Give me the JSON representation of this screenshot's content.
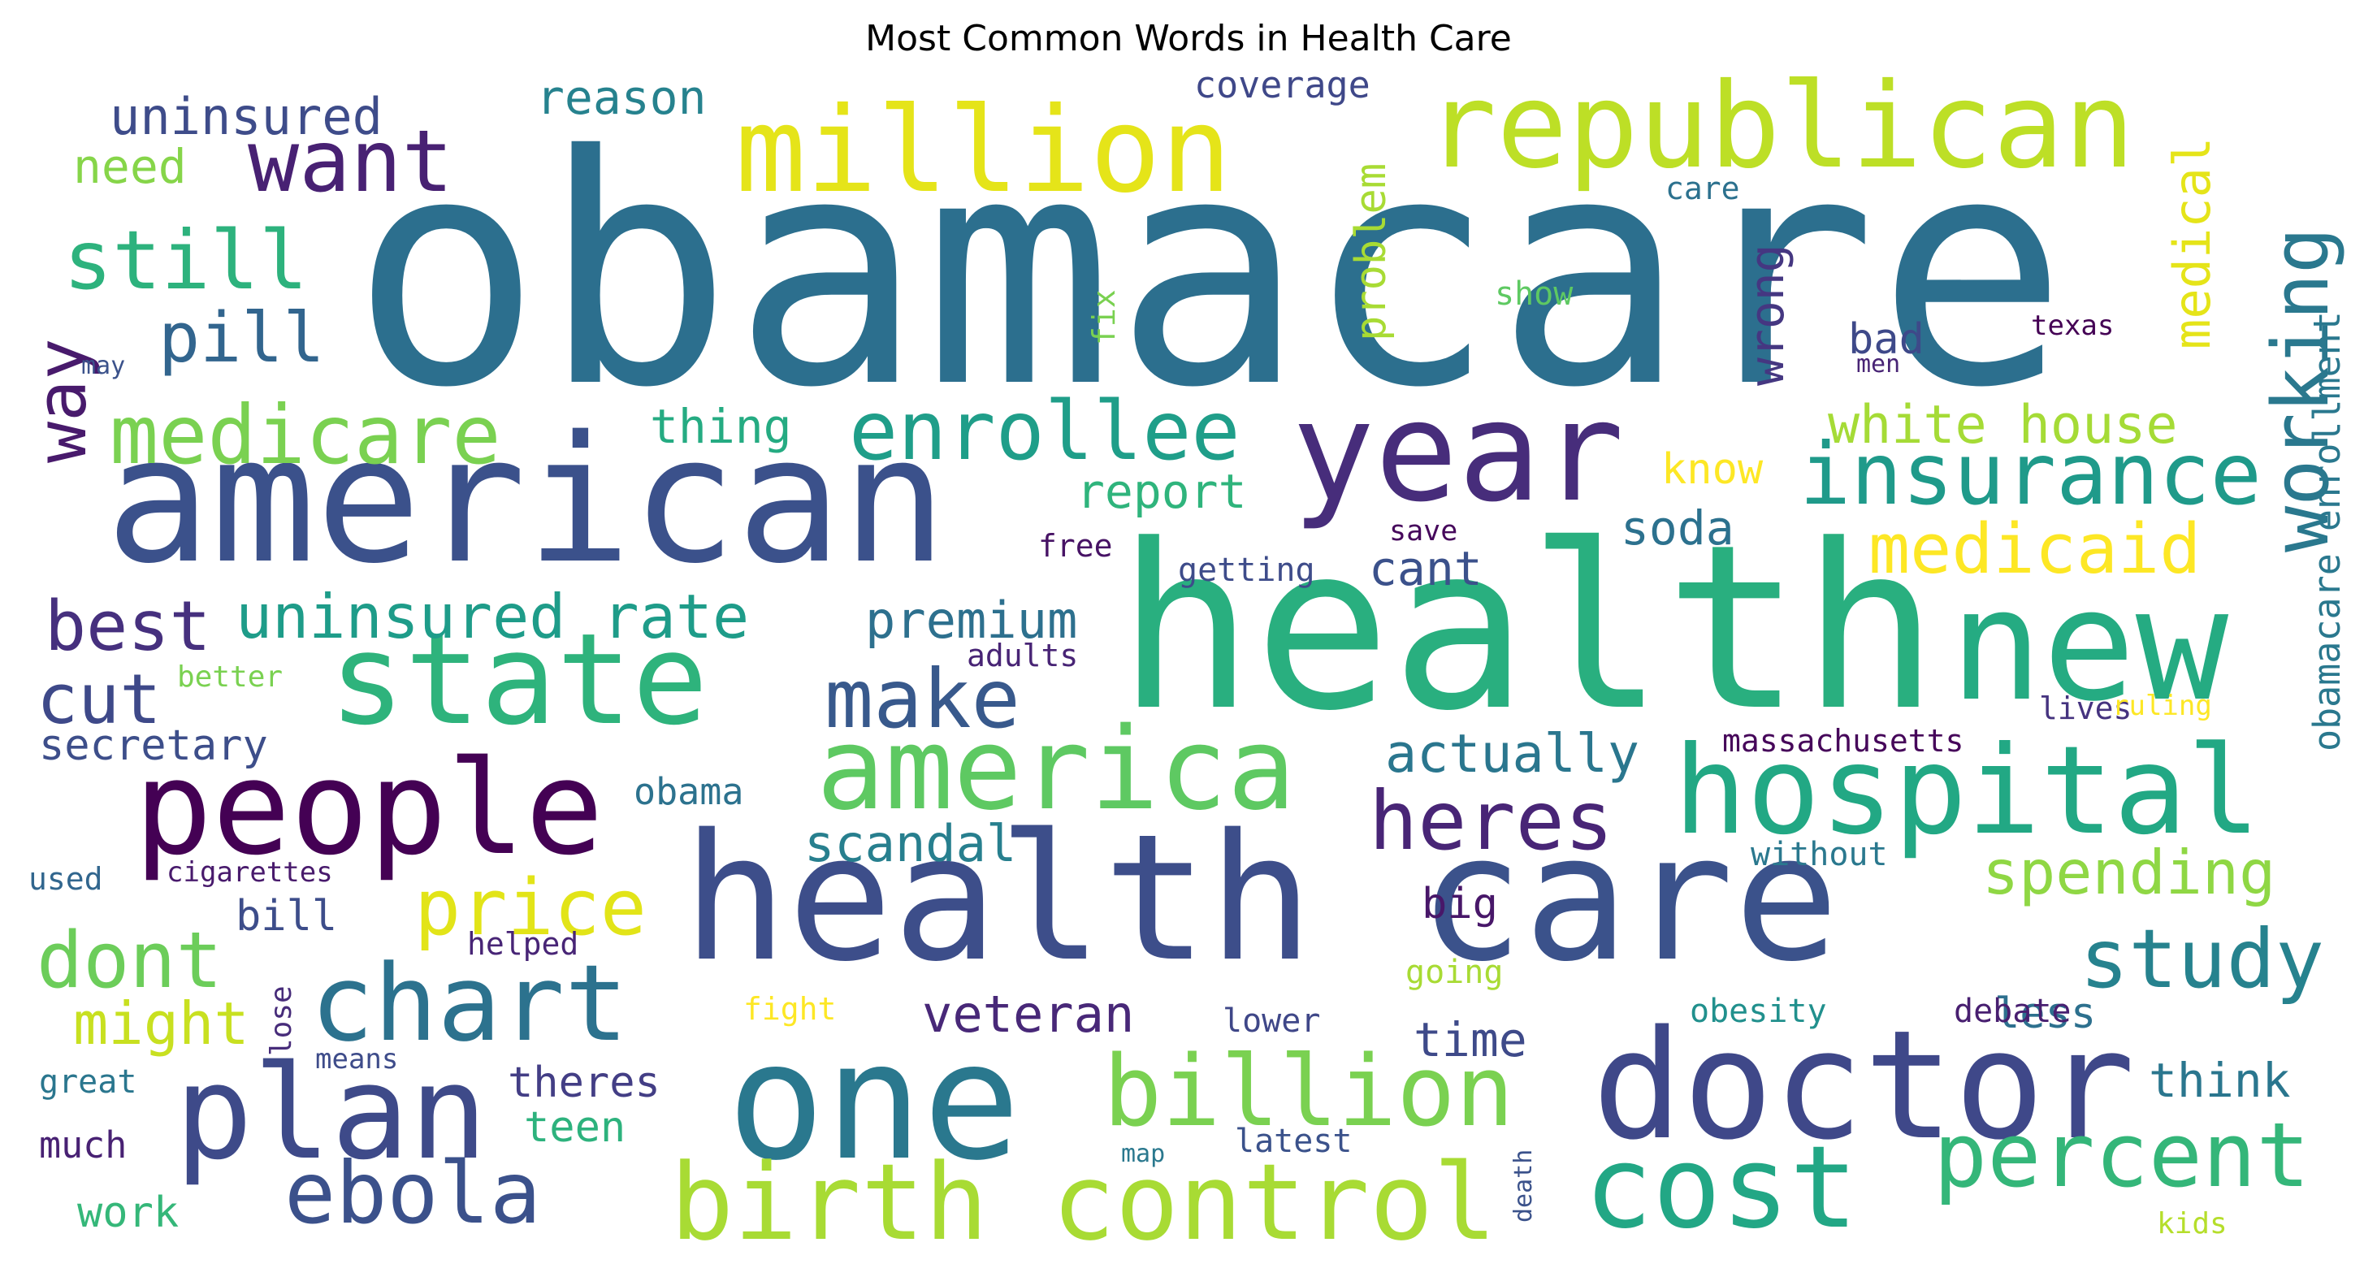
{
  "chart_data": {
    "type": "wordcloud",
    "title": "Most Common Words in Health Care",
    "words": [
      {
        "text": "obamacare",
        "weight": 100,
        "color": "#2c6f8e"
      },
      {
        "text": "health",
        "weight": 90,
        "color": "#29af7f"
      },
      {
        "text": "american",
        "weight": 72,
        "color": "#3b518b"
      },
      {
        "text": "health care",
        "weight": 72,
        "color": "#3d4e8a"
      },
      {
        "text": "care",
        "weight": 62,
        "color": "#3b528b"
      },
      {
        "text": "new",
        "weight": 58,
        "color": "#25ab82"
      },
      {
        "text": "one",
        "weight": 58,
        "color": "#2a788e"
      },
      {
        "text": "doctor",
        "weight": 52,
        "color": "#3f4889"
      },
      {
        "text": "year",
        "weight": 48,
        "color": "#472d7b"
      },
      {
        "text": "people",
        "weight": 48,
        "color": "#440154"
      },
      {
        "text": "state",
        "weight": 46,
        "color": "#2eb37c"
      },
      {
        "text": "plan",
        "weight": 46,
        "color": "#3e4a89"
      },
      {
        "text": "hospital",
        "weight": 44,
        "color": "#22a884"
      },
      {
        "text": "million",
        "weight": 42,
        "color": "#e5e419"
      },
      {
        "text": "republican",
        "weight": 42,
        "color": "#bddf26"
      },
      {
        "text": "america",
        "weight": 42,
        "color": "#5ec962"
      },
      {
        "text": "cost",
        "weight": 40,
        "color": "#22a785"
      },
      {
        "text": "chart",
        "weight": 40,
        "color": "#2c728e"
      },
      {
        "text": "birth control",
        "weight": 38,
        "color": "#a8db34"
      },
      {
        "text": "billion",
        "weight": 36,
        "color": "#7ad151"
      },
      {
        "text": "percent",
        "weight": 34,
        "color": "#34b679"
      },
      {
        "text": "want",
        "weight": 32,
        "color": "#482173"
      },
      {
        "text": "ebola",
        "weight": 32,
        "color": "#3b518b"
      },
      {
        "text": "insurance",
        "weight": 32,
        "color": "#1f9a8a"
      },
      {
        "text": "enrollee",
        "weight": 30,
        "color": "#1f9e89"
      },
      {
        "text": "medicare",
        "weight": 30,
        "color": "#7ad151"
      },
      {
        "text": "still",
        "weight": 30,
        "color": "#2db27d"
      },
      {
        "text": "make",
        "weight": 30,
        "color": "#38598c"
      },
      {
        "text": "heres",
        "weight": 30,
        "color": "#482576"
      },
      {
        "text": "working",
        "weight": 30,
        "color": "#2a788e"
      },
      {
        "text": "study",
        "weight": 30,
        "color": "#26828e"
      },
      {
        "text": "medicaid",
        "weight": 28,
        "color": "#fde725"
      },
      {
        "text": "way",
        "weight": 28,
        "color": "#481a6c"
      },
      {
        "text": "best",
        "weight": 28,
        "color": "#46307e"
      },
      {
        "text": "price",
        "weight": 28,
        "color": "#e2e418"
      },
      {
        "text": "dont",
        "weight": 28,
        "color": "#6ccd5a"
      },
      {
        "text": "pill",
        "weight": 26,
        "color": "#32658e"
      },
      {
        "text": "cut",
        "weight": 26,
        "color": "#3e4989"
      },
      {
        "text": "uninsured rate",
        "weight": 24,
        "color": "#1e9c89"
      },
      {
        "text": "spending",
        "weight": 24,
        "color": "#8fd744"
      },
      {
        "text": "actually",
        "weight": 22,
        "color": "#2a768e"
      },
      {
        "text": "white house",
        "weight": 22,
        "color": "#a5db36"
      },
      {
        "text": "uninsured",
        "weight": 22,
        "color": "#3e4c8a"
      },
      {
        "text": "premium",
        "weight": 22,
        "color": "#2d708e"
      },
      {
        "text": "medical",
        "weight": 22,
        "color": "#e5e419"
      },
      {
        "text": "might",
        "weight": 22,
        "color": "#c8e020"
      },
      {
        "text": "scandal",
        "weight": 20,
        "color": "#277f8e"
      },
      {
        "text": "veteran",
        "weight": 20,
        "color": "#482878"
      },
      {
        "text": "reason",
        "weight": 20,
        "color": "#26828e"
      },
      {
        "text": "soda",
        "weight": 20,
        "color": "#2c718e"
      },
      {
        "text": "time",
        "weight": 20,
        "color": "#3e4a89"
      },
      {
        "text": "report",
        "weight": 20,
        "color": "#2fb47c"
      },
      {
        "text": "thing",
        "weight": 20,
        "color": "#25ab82"
      },
      {
        "text": "cant",
        "weight": 20,
        "color": "#3b518b"
      },
      {
        "text": "wrong",
        "weight": 20,
        "color": "#453781"
      },
      {
        "text": "think",
        "weight": 20,
        "color": "#2a768e"
      },
      {
        "text": "need",
        "weight": 18,
        "color": "#86d549"
      },
      {
        "text": "secretary",
        "weight": 18,
        "color": "#3d4e8a"
      },
      {
        "text": "bad",
        "weight": 18,
        "color": "#3e4989"
      },
      {
        "text": "problem",
        "weight": 18,
        "color": "#a8db34"
      },
      {
        "text": "theres",
        "weight": 18,
        "color": "#433e85"
      },
      {
        "text": "teen",
        "weight": 18,
        "color": "#2db27d"
      },
      {
        "text": "work",
        "weight": 18,
        "color": "#35b779"
      },
      {
        "text": "obama",
        "weight": 16,
        "color": "#2c728e"
      },
      {
        "text": "bill",
        "weight": 16,
        "color": "#3d4d8a"
      },
      {
        "text": "less",
        "weight": 16,
        "color": "#2d708e"
      },
      {
        "text": "obamacare enrollment",
        "weight": 16,
        "color": "#2a788e"
      },
      {
        "text": "know",
        "weight": 16,
        "color": "#fde725"
      },
      {
        "text": "big",
        "weight": 16,
        "color": "#481769"
      },
      {
        "text": "coverage",
        "weight": 14,
        "color": "#3f4889"
      },
      {
        "text": "great",
        "weight": 14,
        "color": "#2a768e"
      },
      {
        "text": "much",
        "weight": 14,
        "color": "#482173"
      },
      {
        "text": "getting",
        "weight": 14,
        "color": "#3e4c8a"
      },
      {
        "text": "lower",
        "weight": 14,
        "color": "#3f4788"
      },
      {
        "text": "massachusetts",
        "weight": 14,
        "color": "#46075a"
      },
      {
        "text": "obesity",
        "weight": 14,
        "color": "#21908d"
      },
      {
        "text": "show",
        "weight": 12,
        "color": "#5ec962"
      },
      {
        "text": "going",
        "weight": 12,
        "color": "#a8db34"
      },
      {
        "text": "without",
        "weight": 12,
        "color": "#2a788e"
      },
      {
        "text": "debate",
        "weight": 12,
        "color": "#481f70"
      },
      {
        "text": "latest",
        "weight": 12,
        "color": "#3b528b"
      },
      {
        "text": "lives",
        "weight": 12,
        "color": "#45337f"
      },
      {
        "text": "helped",
        "weight": 12,
        "color": "#482576"
      },
      {
        "text": "fix",
        "weight": 12,
        "color": "#7ad151"
      },
      {
        "text": "free",
        "weight": 12,
        "color": "#471365"
      },
      {
        "text": "adults",
        "weight": 12,
        "color": "#482475"
      },
      {
        "text": "save",
        "weight": 12,
        "color": "#46085c"
      },
      {
        "text": "care_small",
        "display": "care",
        "weight": 12,
        "color": "#2c718e"
      },
      {
        "text": "texas",
        "weight": 11,
        "color": "#440154"
      },
      {
        "text": "better",
        "weight": 11,
        "color": "#7ad151"
      },
      {
        "text": "used",
        "weight": 11,
        "color": "#31668e"
      },
      {
        "text": "cigarettes",
        "weight": 11,
        "color": "#481a6c"
      },
      {
        "text": "lose",
        "weight": 11,
        "color": "#472c7a"
      },
      {
        "text": "means",
        "weight": 11,
        "color": "#3e4c8a"
      },
      {
        "text": "fight",
        "weight": 11,
        "color": "#fde725"
      },
      {
        "text": "ruling",
        "weight": 11,
        "color": "#fde725"
      },
      {
        "text": "kids",
        "weight": 11,
        "color": "#b5de2b"
      },
      {
        "text": "map",
        "weight": 10,
        "color": "#2a788e"
      },
      {
        "text": "death",
        "weight": 10,
        "color": "#3b528b"
      },
      {
        "text": "may",
        "weight": 10,
        "color": "#3b528b"
      },
      {
        "text": "men",
        "weight": 10,
        "color": "#482475"
      }
    ]
  }
}
